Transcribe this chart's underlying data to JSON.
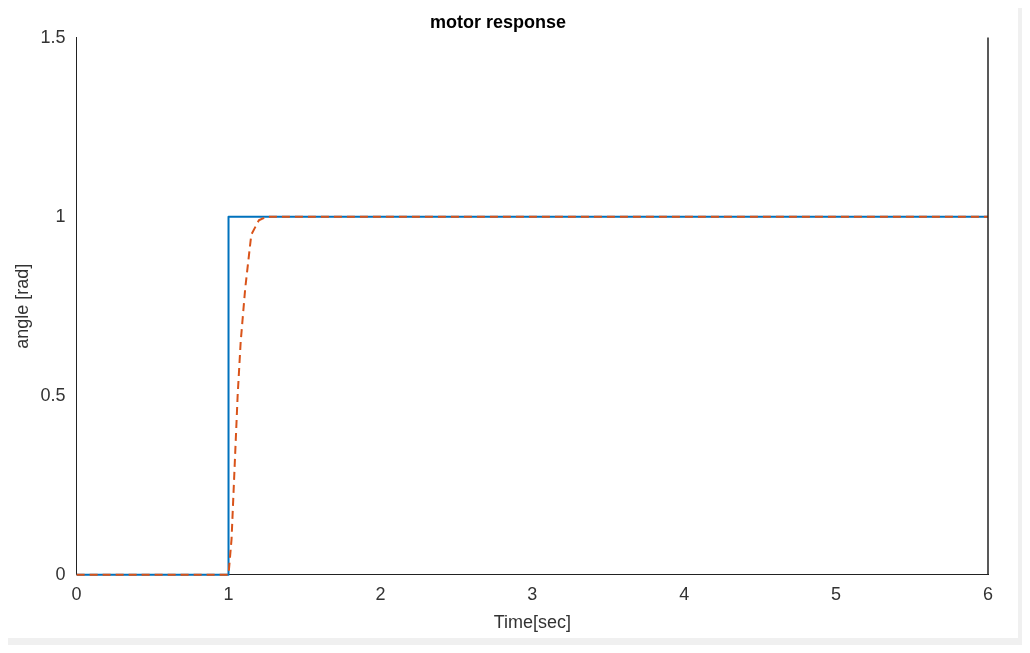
{
  "chart_data": {
    "type": "line",
    "title": "motor response",
    "xlabel": "Time[sec]",
    "ylabel": "angle [rad]",
    "xlim": [
      0,
      6
    ],
    "xticks": [
      0,
      1,
      2,
      3,
      4,
      5,
      6
    ],
    "ylim": [
      0,
      1.5
    ],
    "yticks": [
      0,
      0.5,
      1,
      1.5
    ],
    "grid": false,
    "legend": false,
    "marker": "none",
    "series": [
      {
        "color": "#0072bd",
        "x": [
          0,
          1,
          1,
          6
        ],
        "values": [
          0,
          0,
          1,
          1
        ]
      },
      {
        "color": "#d95319",
        "x": [
          0,
          1,
          1.02,
          1.04,
          1.06,
          1.08,
          1.11,
          1.15,
          1.2,
          1.25,
          1.3,
          6
        ],
        "values": [
          0,
          0,
          0.1,
          0.3,
          0.5,
          0.65,
          0.8,
          0.95,
          0.99,
          1,
          1,
          1
        ],
        "line_style": "dashed"
      }
    ]
  }
}
